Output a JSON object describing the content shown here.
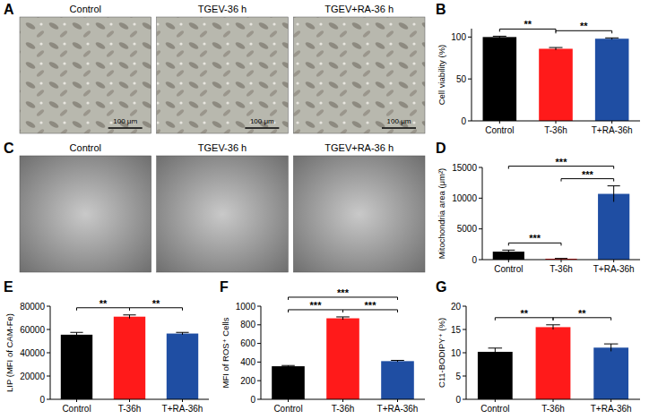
{
  "chart_data": [
    {
      "type": "bar",
      "panel": "B",
      "y_label": "Cell viability (%)",
      "categories": [
        "Control",
        "T-36h",
        "T+RA-36h"
      ],
      "values": [
        100,
        86,
        98
      ],
      "errors": [
        1,
        1.5,
        1
      ],
      "colors": [
        "#000000",
        "#ff1a1a",
        "#1f4ea3"
      ],
      "ylim": [
        0,
        110
      ],
      "yticks": [
        0,
        50,
        100
      ],
      "grid": false,
      "annotations": [
        {
          "from": 0,
          "to": 1,
          "text": "**"
        },
        {
          "from": 1,
          "to": 2,
          "text": "**"
        }
      ]
    },
    {
      "type": "bar",
      "panel": "D",
      "y_label": "Mitochondria area (μm²)",
      "categories": [
        "Control",
        "T-36h",
        "T+RA-36h"
      ],
      "values": [
        1300,
        150,
        10700
      ],
      "errors": [
        250,
        50,
        1300
      ],
      "colors": [
        "#000000",
        "#ff1a1a",
        "#1f4ea3"
      ],
      "ylim": [
        0,
        15000
      ],
      "yticks": [
        0,
        5000,
        10000,
        15000
      ],
      "grid": false,
      "annotations": [
        {
          "from": 0,
          "to": 1,
          "text": "***"
        },
        {
          "from": 1,
          "to": 2,
          "text": "***"
        },
        {
          "from": 0,
          "to": 2,
          "text": "***"
        }
      ]
    },
    {
      "type": "bar",
      "panel": "E",
      "y_label": "LIP (MFI of CAM-Fe)",
      "categories": [
        "Control",
        "T-36h",
        "T+RA-36h"
      ],
      "values": [
        55500,
        71000,
        56500
      ],
      "errors": [
        2000,
        1500,
        1000
      ],
      "colors": [
        "#000000",
        "#ff1a1a",
        "#1f4ea3"
      ],
      "ylim": [
        0,
        80000
      ],
      "yticks": [
        0,
        20000,
        40000,
        60000,
        80000
      ],
      "grid": false,
      "annotations": [
        {
          "from": 0,
          "to": 1,
          "text": "**"
        },
        {
          "from": 1,
          "to": 2,
          "text": "**"
        }
      ]
    },
    {
      "type": "bar",
      "panel": "F",
      "y_label": "MFI of ROS⁺ Cells",
      "categories": [
        "Control",
        "T-36h",
        "T+RA-36h"
      ],
      "values": [
        355,
        870,
        410
      ],
      "errors": [
        8,
        15,
        8
      ],
      "colors": [
        "#000000",
        "#ff1a1a",
        "#1f4ea3"
      ],
      "ylim": [
        0,
        1000
      ],
      "yticks": [
        0,
        200,
        400,
        600,
        800,
        1000
      ],
      "grid": false,
      "annotations": [
        {
          "from": 0,
          "to": 1,
          "text": "***"
        },
        {
          "from": 1,
          "to": 2,
          "text": "***"
        },
        {
          "from": 0,
          "to": 2,
          "text": "***"
        }
      ]
    },
    {
      "type": "bar",
      "panel": "G",
      "y_label": "C11-BODIPY⁺ (%)",
      "categories": [
        "Control",
        "T-36h",
        "T+RA-36h"
      ],
      "values": [
        10.2,
        15.5,
        11.1
      ],
      "errors": [
        0.8,
        0.5,
        0.8
      ],
      "colors": [
        "#000000",
        "#ff1a1a",
        "#1f4ea3"
      ],
      "ylim": [
        0,
        20
      ],
      "yticks": [
        0,
        5,
        10,
        15,
        20
      ],
      "grid": false,
      "annotations": [
        {
          "from": 0,
          "to": 1,
          "text": "**"
        },
        {
          "from": 1,
          "to": 2,
          "text": "**"
        }
      ]
    }
  ],
  "image_panels": [
    {
      "panel": "A",
      "titles": [
        "Control",
        "TGEV-36 h",
        "TGEV+RA-36 h"
      ],
      "scale_bar": "100 μm"
    },
    {
      "panel": "C",
      "titles": [
        "Control",
        "TGEV-36 h",
        "TGEV+RA-36 h"
      ]
    }
  ]
}
